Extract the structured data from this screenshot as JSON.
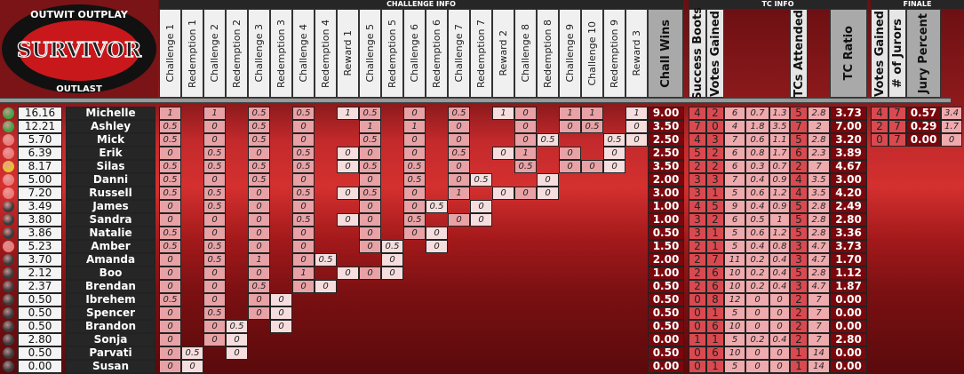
{
  "logo": {
    "top_text": "OUTWIT OUTPLAY",
    "title": "SURVIVOR",
    "bottom_text": "OUTLAST"
  },
  "sections": {
    "challenge": "CHALLENGE INFO",
    "tc": "TC INFO",
    "finale": "FINALE"
  },
  "challenge_headers": [
    "Challenge 1",
    "Redemption 1",
    "Challenge 2",
    "Redemption 2",
    "Challenge 3",
    "Redemption 3",
    "Challenge 4",
    "Redemption 4",
    "Reward 1",
    "Challenge 5",
    "Redemption 5",
    "Challenge 6",
    "Redemption 6",
    "Challenge 7",
    "Redemption 7",
    "Reward 2",
    "Challenge 8",
    "Redemption 8",
    "Challenge 9",
    "Challenge 10",
    "Redemption 9",
    "Reward 3"
  ],
  "wins_header": "Chall Wins",
  "tc_headers": [
    "Success Boots",
    "Votes Gained",
    "",
    "",
    "",
    "TCs Attended",
    ""
  ],
  "tc_ratio_header": "TC Ratio",
  "finale_headers": [
    "Votes Gained",
    "# of Jurors",
    "Jury Percent",
    ""
  ],
  "status_colors": {
    "winner": "#3fa544",
    "finalist": "#e8c22a",
    "juror": "#ec7a78",
    "out": "#3a3a3a"
  },
  "players": [
    {
      "status": "winner",
      "score": "16.16",
      "name": "Michelle",
      "ch": [
        "1",
        "",
        "1",
        "",
        "0.5",
        "",
        "0.5",
        "",
        "1",
        "0.5",
        "",
        "0",
        "",
        "0.5",
        "",
        "1",
        "0",
        "",
        "1",
        "1",
        "",
        "1"
      ],
      "wins": "9.00",
      "tc": [
        "4",
        "2",
        "6",
        "0.7",
        "1.3",
        "5",
        "2.8"
      ],
      "ratio": "3.73",
      "finale": [
        "4",
        "7",
        "0.57",
        "3.4"
      ]
    },
    {
      "status": "winner",
      "score": "12.21",
      "name": "Ashley",
      "ch": [
        "0.5",
        "",
        "0",
        "",
        "0.5",
        "",
        "0",
        "",
        "",
        "1",
        "",
        "1",
        "",
        "0",
        "",
        "",
        "0",
        "",
        "0",
        "0.5",
        "",
        "0"
      ],
      "wins": "3.50",
      "tc": [
        "7",
        "0",
        "4",
        "1.8",
        "3.5",
        "7",
        "2"
      ],
      "ratio": "7.00",
      "finale": [
        "2",
        "7",
        "0.29",
        "1.7"
      ]
    },
    {
      "status": "juror",
      "score": "5.70",
      "name": "Mick",
      "ch": [
        "0.5",
        "",
        "0",
        "",
        "0.5",
        "",
        "0",
        "",
        "",
        "0.5",
        "",
        "0",
        "",
        "0",
        "",
        "",
        "0",
        "0.5",
        "",
        "",
        "0.5",
        "0"
      ],
      "wins": "2.50",
      "tc": [
        "4",
        "3",
        "7",
        "0.6",
        "1.1",
        "5",
        "2.8"
      ],
      "ratio": "3.20",
      "finale": [
        "0",
        "7",
        "0.00",
        "0"
      ]
    },
    {
      "status": "juror",
      "score": "6.39",
      "name": "Erik",
      "ch": [
        "0",
        "",
        "0.5",
        "",
        "0",
        "",
        "0.5",
        "",
        "0",
        "0",
        "",
        "0",
        "",
        "0.5",
        "",
        "0",
        "1",
        "",
        "0",
        "",
        "0",
        ""
      ],
      "wins": "2.50",
      "tc": [
        "5",
        "2",
        "6",
        "0.8",
        "1.7",
        "6",
        "2.3"
      ],
      "ratio": "3.89"
    },
    {
      "status": "finalist",
      "score": "8.17",
      "name": "Silas",
      "ch": [
        "0.5",
        "",
        "0.5",
        "",
        "0.5",
        "",
        "0.5",
        "",
        "0",
        "0.5",
        "",
        "0.5",
        "",
        "0",
        "",
        "",
        "0.5",
        "",
        "0",
        "0",
        "0",
        ""
      ],
      "wins": "3.50",
      "tc": [
        "2",
        "2",
        "6",
        "0.3",
        "0.7",
        "2",
        "7"
      ],
      "ratio": "4.67"
    },
    {
      "status": "juror",
      "score": "5.00",
      "name": "Danni",
      "ch": [
        "0.5",
        "",
        "0",
        "",
        "0.5",
        "",
        "0",
        "",
        "",
        "0",
        "",
        "0.5",
        "",
        "0",
        "0.5",
        "",
        "",
        "0"
      ],
      "wins": "2.00",
      "tc": [
        "3",
        "3",
        "7",
        "0.4",
        "0.9",
        "4",
        "3.5"
      ],
      "ratio": "3.00"
    },
    {
      "status": "juror",
      "score": "7.20",
      "name": "Russell",
      "ch": [
        "0.5",
        "",
        "0.5",
        "",
        "0",
        "",
        "0.5",
        "",
        "0",
        "0.5",
        "",
        "0",
        "",
        "1",
        "",
        "0",
        "0",
        "0"
      ],
      "wins": "3.00",
      "tc": [
        "3",
        "1",
        "5",
        "0.6",
        "1.2",
        "4",
        "3.5"
      ],
      "ratio": "4.20"
    },
    {
      "status": "out",
      "score": "3.49",
      "name": "James",
      "ch": [
        "0",
        "",
        "0.5",
        "",
        "0",
        "",
        "0",
        "",
        "",
        "0",
        "",
        "0",
        "0.5",
        "",
        "0"
      ],
      "wins": "1.00",
      "tc": [
        "4",
        "5",
        "9",
        "0.4",
        "0.9",
        "5",
        "2.8"
      ],
      "ratio": "2.49"
    },
    {
      "status": "out",
      "score": "3.80",
      "name": "Sandra",
      "ch": [
        "0",
        "",
        "0",
        "",
        "0",
        "",
        "0.5",
        "",
        "0",
        "0",
        "",
        "0.5",
        "",
        "0",
        "0"
      ],
      "wins": "1.00",
      "tc": [
        "3",
        "2",
        "6",
        "0.5",
        "1",
        "5",
        "2.8"
      ],
      "ratio": "2.80"
    },
    {
      "status": "out",
      "score": "3.86",
      "name": "Natalie",
      "ch": [
        "0.5",
        "",
        "0",
        "",
        "0",
        "",
        "0",
        "",
        "",
        "0",
        "",
        "0",
        "0"
      ],
      "wins": "0.50",
      "tc": [
        "3",
        "1",
        "5",
        "0.6",
        "1.2",
        "5",
        "2.8"
      ],
      "ratio": "3.36"
    },
    {
      "status": "juror",
      "score": "5.23",
      "name": "Amber",
      "ch": [
        "0.5",
        "",
        "0.5",
        "",
        "0",
        "",
        "0",
        "",
        "",
        "0",
        "0.5",
        "",
        "0"
      ],
      "wins": "1.50",
      "tc": [
        "2",
        "1",
        "5",
        "0.4",
        "0.8",
        "3",
        "4.7"
      ],
      "ratio": "3.73"
    },
    {
      "status": "out",
      "score": "3.70",
      "name": "Amanda",
      "ch": [
        "0",
        "",
        "0.5",
        "",
        "1",
        "",
        "0",
        "0.5",
        "",
        "",
        "0"
      ],
      "wins": "2.00",
      "tc": [
        "2",
        "7",
        "11",
        "0.2",
        "0.4",
        "3",
        "4.7"
      ],
      "ratio": "1.70"
    },
    {
      "status": "out",
      "score": "2.12",
      "name": "Boo",
      "ch": [
        "0",
        "",
        "0",
        "",
        "0",
        "",
        "1",
        "",
        "0",
        "0",
        "0"
      ],
      "wins": "1.00",
      "tc": [
        "2",
        "6",
        "10",
        "0.2",
        "0.4",
        "5",
        "2.8"
      ],
      "ratio": "1.12"
    },
    {
      "status": "out",
      "score": "2.37",
      "name": "Brendan",
      "ch": [
        "0",
        "",
        "0",
        "",
        "0.5",
        "",
        "0",
        "0"
      ],
      "wins": "0.50",
      "tc": [
        "2",
        "6",
        "10",
        "0.2",
        "0.4",
        "3",
        "4.7"
      ],
      "ratio": "1.87"
    },
    {
      "status": "out",
      "score": "0.50",
      "name": "Ibrehem",
      "ch": [
        "0.5",
        "",
        "0",
        "",
        "0",
        "0"
      ],
      "wins": "0.50",
      "tc": [
        "0",
        "8",
        "12",
        "0",
        "0",
        "2",
        "7"
      ],
      "ratio": "0.00"
    },
    {
      "status": "out",
      "score": "0.50",
      "name": "Spencer",
      "ch": [
        "0",
        "",
        "0.5",
        "",
        "0",
        "0"
      ],
      "wins": "0.50",
      "tc": [
        "0",
        "1",
        "5",
        "0",
        "0",
        "2",
        "7"
      ],
      "ratio": "0.00"
    },
    {
      "status": "out",
      "score": "0.50",
      "name": "Brandon",
      "ch": [
        "0",
        "",
        "0",
        "0.5",
        "",
        "0"
      ],
      "wins": "0.50",
      "tc": [
        "0",
        "6",
        "10",
        "0",
        "0",
        "2",
        "7"
      ],
      "ratio": "0.00"
    },
    {
      "status": "out",
      "score": "2.80",
      "name": "Sonja",
      "ch": [
        "0",
        "",
        "0",
        "0"
      ],
      "wins": "0.00",
      "tc": [
        "1",
        "1",
        "5",
        "0.2",
        "0.4",
        "2",
        "7"
      ],
      "ratio": "2.80"
    },
    {
      "status": "out",
      "score": "0.50",
      "name": "Parvati",
      "ch": [
        "0",
        "0.5",
        "",
        "0"
      ],
      "wins": "0.50",
      "tc": [
        "0",
        "6",
        "10",
        "0",
        "0",
        "1",
        "14"
      ],
      "ratio": "0.00"
    },
    {
      "status": "out",
      "score": "0.00",
      "name": "Susan",
      "ch": [
        "0",
        "0"
      ],
      "wins": "0.00",
      "tc": [
        "0",
        "1",
        "5",
        "0",
        "0",
        "1",
        "14"
      ],
      "ratio": "0.00"
    }
  ]
}
